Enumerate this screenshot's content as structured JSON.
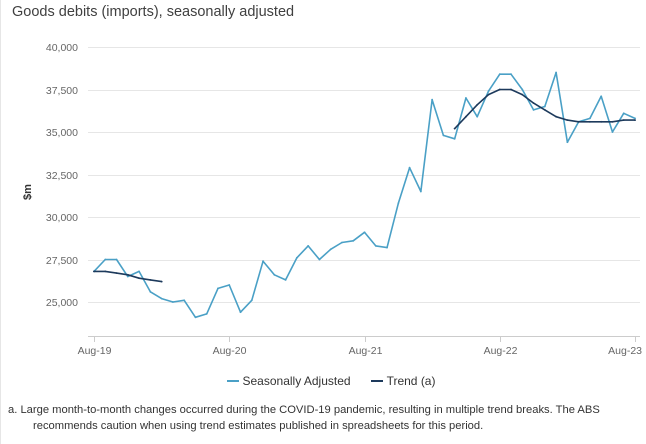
{
  "chart_data": {
    "type": "line",
    "title": "Goods debits (imports), seasonally adjusted",
    "ylabel": "$m",
    "ylim": [
      23000,
      40000
    ],
    "yticks": [
      "25,000",
      "27,500",
      "30,000",
      "32,500",
      "35,000",
      "37,500",
      "40,000"
    ],
    "xticks": [
      "Aug-19",
      "Aug-20",
      "Aug-21",
      "Aug-22",
      "Aug-23"
    ],
    "x": [
      "Aug-19",
      "Sep-19",
      "Oct-19",
      "Nov-19",
      "Dec-19",
      "Jan-20",
      "Feb-20",
      "Mar-20",
      "Apr-20",
      "May-20",
      "Jun-20",
      "Jul-20",
      "Aug-20",
      "Sep-20",
      "Oct-20",
      "Nov-20",
      "Dec-20",
      "Jan-21",
      "Feb-21",
      "Mar-21",
      "Apr-21",
      "May-21",
      "Jun-21",
      "Jul-21",
      "Aug-21",
      "Sep-21",
      "Oct-21",
      "Nov-21",
      "Dec-21",
      "Jan-22",
      "Feb-22",
      "Mar-22",
      "Apr-22",
      "May-22",
      "Jun-22",
      "Jul-22",
      "Aug-22",
      "Sep-22",
      "Oct-22",
      "Nov-22",
      "Dec-22",
      "Jan-23",
      "Feb-23",
      "Mar-23",
      "Apr-23",
      "May-23",
      "Jun-23",
      "Jul-23",
      "Aug-23"
    ],
    "series": [
      {
        "name": "Seasonally Adjusted",
        "color": "#4aa0c6",
        "values": [
          26800,
          27500,
          27500,
          26500,
          26800,
          25600,
          25200,
          25000,
          25100,
          24100,
          24300,
          25800,
          26000,
          24400,
          25100,
          27400,
          26600,
          26300,
          27600,
          28300,
          27500,
          28100,
          28500,
          28600,
          29100,
          28300,
          28200,
          30800,
          32900,
          31500,
          36900,
          34800,
          34600,
          37000,
          35900,
          37400,
          38400,
          38400,
          37500,
          36300,
          36500,
          38500,
          34400,
          35600,
          35800,
          37100,
          35000,
          36100,
          35800
        ]
      },
      {
        "name": "Trend (a)",
        "color": "#1d3a5c",
        "values": [
          26800,
          26800,
          26700,
          26600,
          26400,
          26300,
          26200,
          null,
          null,
          null,
          null,
          null,
          null,
          null,
          null,
          null,
          null,
          null,
          null,
          null,
          null,
          null,
          null,
          null,
          null,
          null,
          null,
          null,
          null,
          null,
          null,
          null,
          35200,
          35900,
          36600,
          37200,
          37500,
          37500,
          37200,
          36700,
          36300,
          35900,
          35700,
          35600,
          35600,
          35600,
          35600,
          35700,
          35700
        ]
      }
    ],
    "grid": true,
    "legend": "bottom-center",
    "footnote": "a. Large month-to-month changes occurred during the COVID-19 pandemic, resulting in multiple trend breaks. The ABS recommends caution when using trend estimates published in spreadsheets for this period."
  }
}
